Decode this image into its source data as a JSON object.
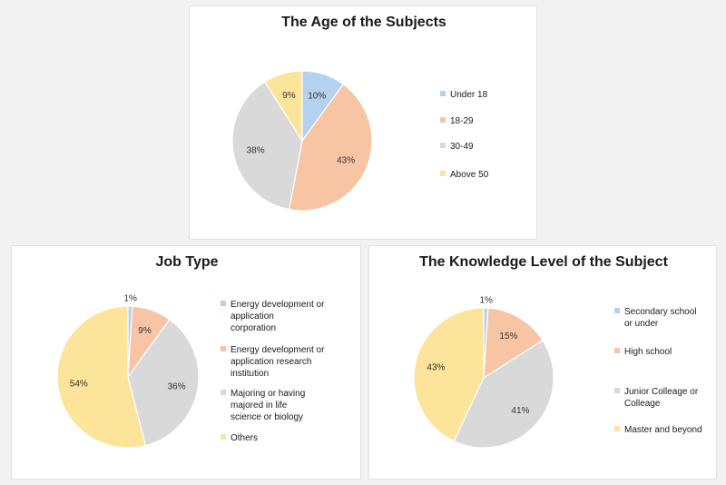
{
  "chart_data": [
    {
      "type": "pie",
      "title": "The Age of the Subjects",
      "categories": [
        "Under 18",
        "18-29",
        "30-49",
        "Above 50"
      ],
      "values": [
        10,
        43,
        38,
        9
      ],
      "labels": [
        "10%",
        "43%",
        "38%",
        "9%"
      ],
      "colors": [
        "#b4d1f0",
        "#f7c5a4",
        "#d9d9d9",
        "#fde49b"
      ],
      "legend": "right"
    },
    {
      "type": "pie",
      "title": "Job Type",
      "categories": [
        "Energy development or application corporation",
        "Energy development or application research institution",
        "Majoring or having majored in life science or biology",
        "Others"
      ],
      "values": [
        1,
        9,
        36,
        54
      ],
      "labels": [
        "1%",
        "9%",
        "36%",
        "54%"
      ],
      "colors": [
        "#b4d1f0",
        "#f7c5a4",
        "#d9d9d9",
        "#fde49b"
      ],
      "legend": "right"
    },
    {
      "type": "pie",
      "title": "The Knowledge Level of the Subject",
      "categories": [
        "Secondary school or under",
        "High school",
        "Junior Colleage or Colleage",
        "Master and beyond"
      ],
      "values": [
        1,
        15,
        41,
        43
      ],
      "labels": [
        "1%",
        "15%",
        "41%",
        "43%"
      ],
      "colors": [
        "#b4d1f0",
        "#f7c5a4",
        "#d9d9d9",
        "#fde49b"
      ],
      "legend": "right"
    }
  ]
}
